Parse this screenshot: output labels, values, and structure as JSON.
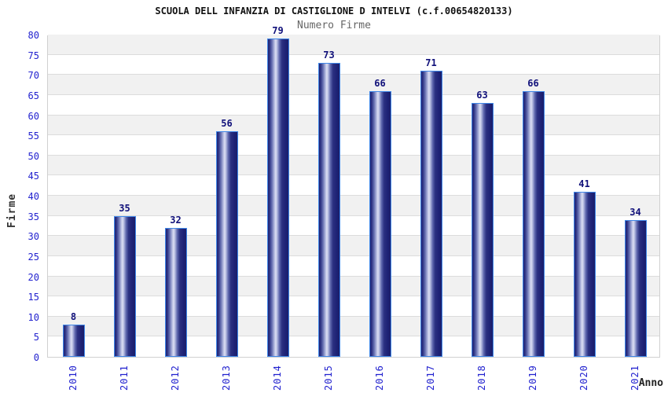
{
  "header": {
    "title": "SCUOLA DELL INFANZIA DI CASTIGLIONE D INTELVI (c.f.00654820133)",
    "subtitle": "Numero Firme"
  },
  "chart_data": {
    "type": "bar",
    "title": "SCUOLA DELL INFANZIA DI CASTIGLIONE D INTELVI (c.f.00654820133)",
    "subtitle": "Numero Firme",
    "categories": [
      "2010",
      "2011",
      "2012",
      "2013",
      "2014",
      "2015",
      "2016",
      "2017",
      "2018",
      "2019",
      "2020",
      "2021"
    ],
    "values": [
      8,
      35,
      32,
      56,
      79,
      73,
      66,
      71,
      63,
      66,
      41,
      34
    ],
    "xlabel": "Anno",
    "ylabel": "Firme",
    "ylim": [
      0,
      80
    ],
    "ytick_step": 5,
    "legend": "none",
    "grid": "horizontal-bands-alternating",
    "colors": {
      "axis_text": "#2222cf",
      "value_label": "#10107a",
      "bar_dark": "#1f2376",
      "bar_light": "#dcdff3",
      "bar_border": "#3f87e8",
      "band_fill": "#f1f1f1",
      "gridline": "#dcdcdc",
      "title_text": "#111111",
      "subtitle_text": "#666666"
    }
  }
}
